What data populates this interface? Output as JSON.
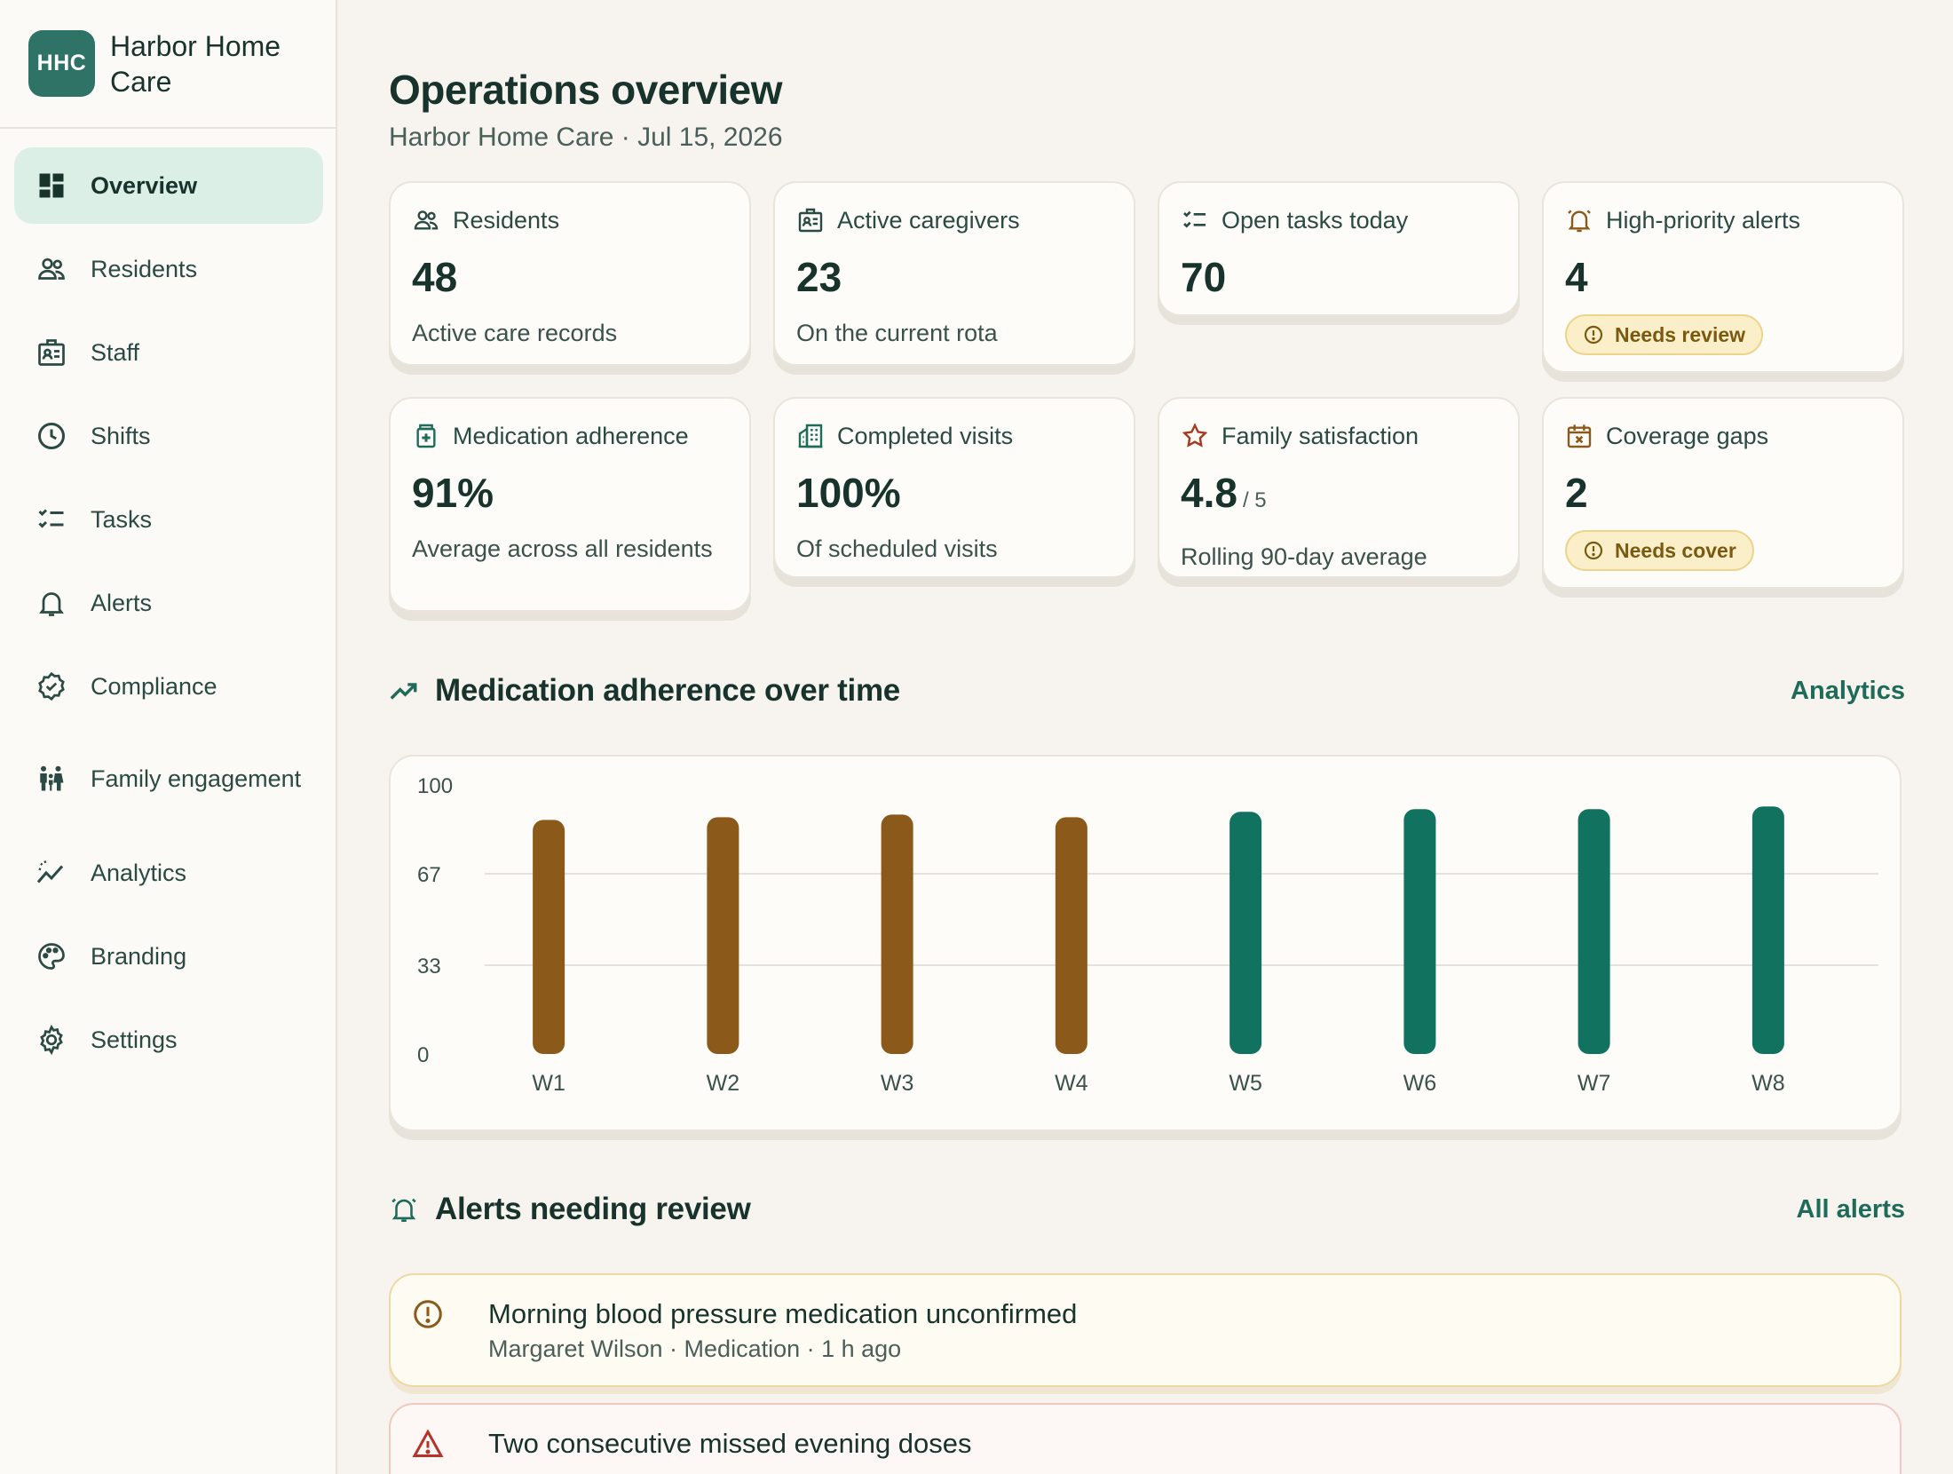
{
  "brand": {
    "logo": "HHC",
    "name": "Harbor Home Care"
  },
  "nav": [
    {
      "label": "Overview",
      "icon": "dashboard-icon",
      "active": true
    },
    {
      "label": "Residents",
      "icon": "users-icon"
    },
    {
      "label": "Staff",
      "icon": "id-badge-icon"
    },
    {
      "label": "Shifts",
      "icon": "clock-icon"
    },
    {
      "label": "Tasks",
      "icon": "checklist-icon"
    },
    {
      "label": "Alerts",
      "icon": "bell-icon"
    },
    {
      "label": "Compliance",
      "icon": "verified-badge-icon"
    },
    {
      "label": "Family engagement",
      "icon": "family-icon"
    },
    {
      "label": "Analytics",
      "icon": "trend-icon"
    },
    {
      "label": "Branding",
      "icon": "palette-icon"
    },
    {
      "label": "Settings",
      "icon": "gear-icon"
    }
  ],
  "header": {
    "title": "Operations overview",
    "subtitle": "Harbor Home Care · Jul 15, 2026"
  },
  "metrics": [
    {
      "label": "Residents",
      "value": "48",
      "sub": "Active care records",
      "icon": "users-icon"
    },
    {
      "label": "Active caregivers",
      "value": "23",
      "sub": "On the current rota",
      "icon": "id-badge-icon"
    },
    {
      "label": "Open tasks today",
      "value": "70",
      "icon": "checklist-icon"
    },
    {
      "label": "High-priority alerts",
      "value": "4",
      "badge": "Needs review",
      "icon": "alarm-bell-icon"
    },
    {
      "label": "Medication adherence",
      "value": "91%",
      "sub": "Average across all residents",
      "icon": "medication-icon"
    },
    {
      "label": "Completed visits",
      "value": "100%",
      "sub": "Of scheduled visits",
      "icon": "buildings-icon"
    },
    {
      "label": "Family satisfaction",
      "value": "4.8",
      "unit": "/ 5",
      "sub": "Rolling 90-day average",
      "icon": "star-icon"
    },
    {
      "label": "Coverage gaps",
      "value": "2",
      "badge": "Needs cover",
      "icon": "calendar-x-icon"
    }
  ],
  "chart_section": {
    "title": "Medication adherence over time",
    "link": "Analytics"
  },
  "chart_data": {
    "type": "bar",
    "categories": [
      "W1",
      "W2",
      "W3",
      "W4",
      "W5",
      "W6",
      "W7",
      "W8"
    ],
    "values": [
      87,
      88,
      89,
      88,
      90,
      91,
      91,
      92
    ],
    "ylim": [
      0,
      100
    ],
    "yticks": [
      "100",
      "67",
      "33",
      "0"
    ],
    "colors": [
      "#8b5a1a",
      "#8b5a1a",
      "#8b5a1a",
      "#8b5a1a",
      "#11735f",
      "#11735f",
      "#11735f",
      "#11735f"
    ],
    "grid": true
  },
  "alerts_section": {
    "title": "Alerts needing review",
    "link": "All alerts"
  },
  "alerts": [
    {
      "title": "Morning blood pressure medication unconfirmed",
      "meta": "Margaret Wilson · Medication · 1 h ago",
      "severity": "warning"
    },
    {
      "title": "Two consecutive missed evening doses",
      "meta": "",
      "severity": "critical"
    }
  ]
}
